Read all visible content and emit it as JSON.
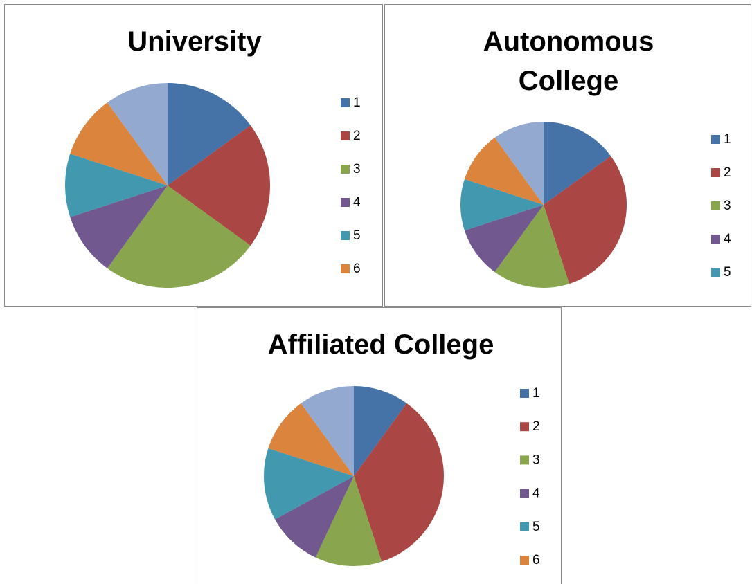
{
  "chart_data": [
    {
      "type": "pie",
      "title": "University",
      "categories": [
        "1",
        "2",
        "3",
        "4",
        "5",
        "6",
        null
      ],
      "values": [
        15,
        20,
        25,
        10,
        10,
        10,
        10
      ],
      "colors": [
        "#4572A7",
        "#AA4643",
        "#89A54E",
        "#71588F",
        "#4198AF",
        "#DB843D",
        "#93A9CF"
      ],
      "legend": "right"
    },
    {
      "type": "pie",
      "title": "Autonomous College",
      "categories": [
        "1",
        "2",
        "3",
        "4",
        "5",
        null,
        null
      ],
      "values": [
        15,
        30,
        15,
        10,
        10,
        10,
        10
      ],
      "colors": [
        "#4572A7",
        "#AA4643",
        "#89A54E",
        "#71588F",
        "#4198AF",
        "#DB843D",
        "#93A9CF"
      ],
      "legend": "right"
    },
    {
      "type": "pie",
      "title": "Affiliated College",
      "categories": [
        "1",
        "2",
        "3",
        "4",
        "5",
        "6",
        null
      ],
      "values": [
        10,
        35,
        12,
        10,
        13,
        10,
        10
      ],
      "colors": [
        "#4572A7",
        "#AA4643",
        "#89A54E",
        "#71588F",
        "#4198AF",
        "#DB843D",
        "#93A9CF"
      ],
      "legend": "right"
    }
  ]
}
